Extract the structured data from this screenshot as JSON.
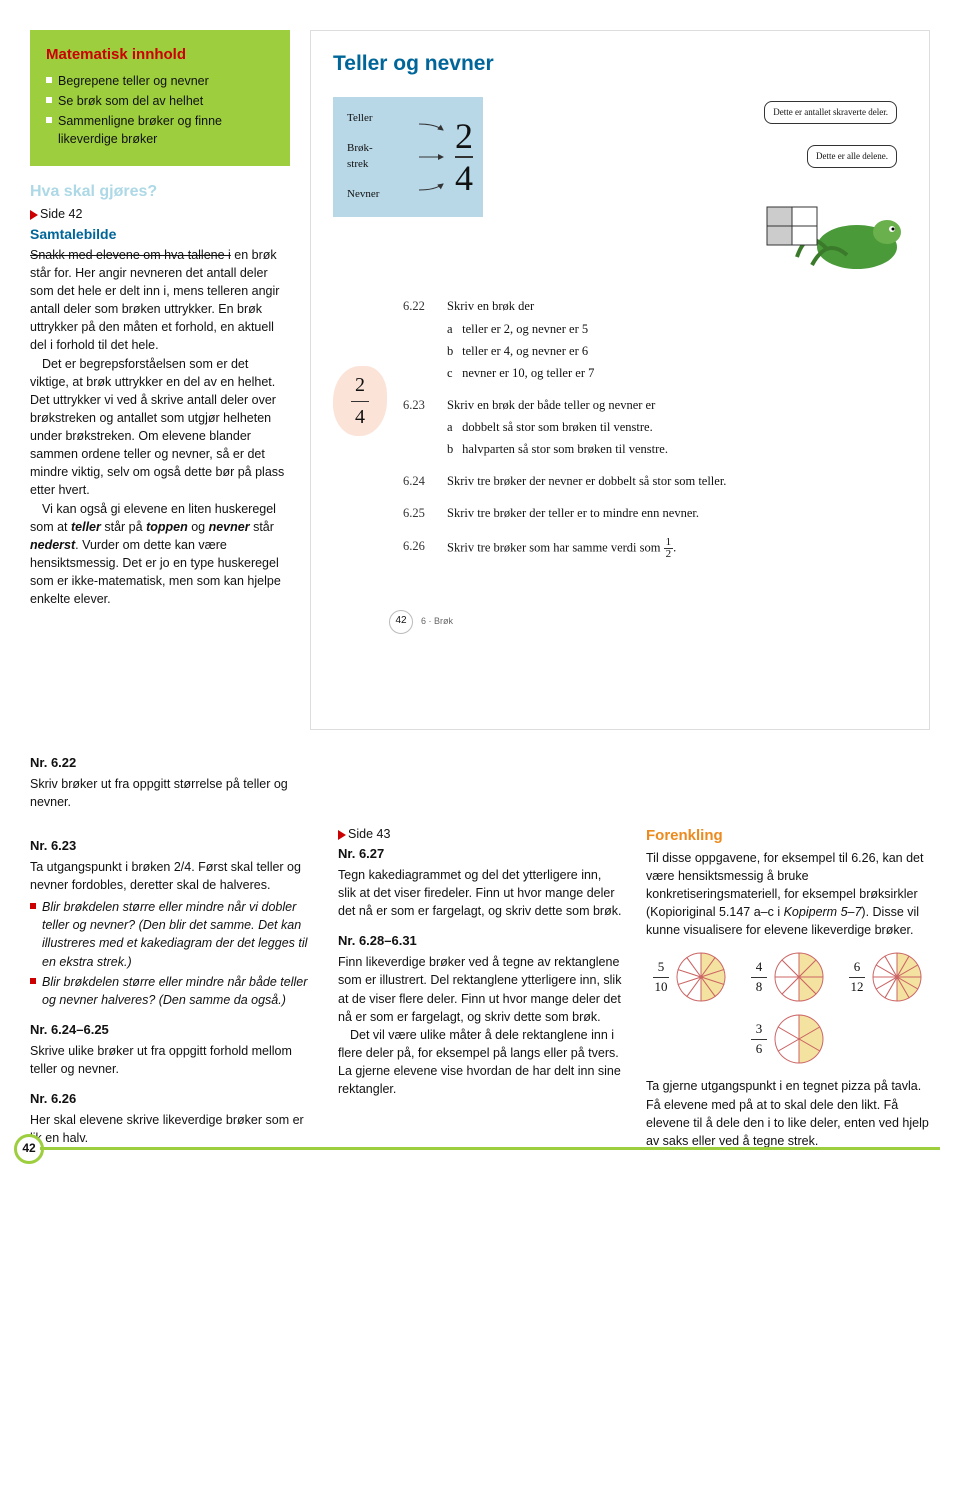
{
  "page_number": "42",
  "left": {
    "box_title": "Matematisk innhold",
    "bullets": [
      "Begrepene teller og nevner",
      "Se brøk som del av helhet",
      "Sammenligne brøker og finne likeverdige brøker"
    ],
    "hva_title": "Hva skal gjøres?",
    "side_ref": "Side 42",
    "sub_title": "Samtalebilde",
    "para1_strike": "Snakk med elevene om hva tallene i",
    "para1_rest": "en brøk står for. Her angir nevneren det antall deler som det hele er delt inn i, mens telleren angir antall deler som brøken uttrykker. En brøk uttrykker på den måten et forhold, en aktuell del i forhold til det hele.",
    "para2": "Det er begrepsforståelsen som er det viktige, at brøk uttrykker en del av en helhet. Det uttrykker vi ved å skrive antall deler over brøkstreken og antallet som utgjør helheten under brøkstreken. Om elevene blander sammen ordene teller og nevner, så er det mindre viktig, selv om også dette bør på plass etter hvert.",
    "para3_pre": "Vi kan også gi elevene en liten huskeregel som at ",
    "para3_b1": "teller",
    "para3_m1": " står på ",
    "para3_b2": "toppen",
    "para3_m2": " og ",
    "para3_b3": "nevner",
    "para3_m3": " står ",
    "para3_b4": "nederst",
    "para3_post": ". Vurder om dette kan være hensiktsmessig. Det er jo en type huskeregel som er ikke-matematisk, men som kan hjelpe enkelte elever."
  },
  "book": {
    "title": "Teller og nevner",
    "teller": "Teller",
    "brokstrek": "Brøk-\nstrek",
    "nevner": "Nevner",
    "frac_top": "2",
    "frac_bot": "4",
    "speech1": "Dette er antallet skraverte deler.",
    "speech2": "Dette er alle delene.",
    "side_frac_top": "2",
    "side_frac_bot": "4",
    "ex": [
      {
        "n": "6.22",
        "q": "Skriv en brøk der",
        "subs": [
          {
            "l": "a",
            "t": "teller er 2, og nevner er 5"
          },
          {
            "l": "b",
            "t": "teller er 4, og nevner er 6"
          },
          {
            "l": "c",
            "t": "nevner er 10, og teller er 7"
          }
        ]
      },
      {
        "n": "6.23",
        "q": "Skriv en brøk der både teller og nevner er",
        "subs": [
          {
            "l": "a",
            "t": "dobbelt så stor som brøken til venstre."
          },
          {
            "l": "b",
            "t": "halvparten så stor som brøken til venstre."
          }
        ]
      },
      {
        "n": "6.24",
        "q": "Skriv tre brøker der nevner er dobbelt så stor som teller."
      },
      {
        "n": "6.25",
        "q": "Skriv tre brøker der teller er to mindre enn nevner."
      },
      {
        "n": "6.26",
        "q": "Skriv tre brøker som har samme verdi som ",
        "frac_t": "1",
        "frac_b": "2",
        "tail": "."
      }
    ],
    "page_num": "42",
    "chapter": "6 · Brøk"
  },
  "mid": {
    "nr622_t": "Nr. 6.22",
    "nr622_p": "Skriv brøker ut fra oppgitt størrelse på teller og nevner.",
    "col1": {
      "nr623_t": "Nr. 6.23",
      "nr623_p": "Ta utgangspunkt i brøken 2/4. Først skal teller og nevner fordobles, deretter skal de halveres.",
      "b1": "Blir brøkdelen større eller mindre når vi dobler teller og nevner? (Den blir det samme. Det kan illustreres med et kakediagram der det legges til en ekstra strek.)",
      "b2": "Blir brøkdelen større eller mindre når både teller og nevner halveres? (Den samme da også.)",
      "nr624_t": "Nr. 6.24–6.25",
      "nr624_p": "Skrive ulike brøker ut fra oppgitt forhold mellom teller og nevner.",
      "nr626_t": "Nr. 6.26",
      "nr626_p": "Her skal elevene skrive likeverdige brøker som er lik en halv."
    },
    "col2": {
      "side43": "Side 43",
      "nr627_t": "Nr. 6.27",
      "nr627_p": "Tegn kakediagrammet og del det ytterligere inn, slik at det viser firedeler. Finn ut hvor mange deler det nå er som er fargelagt, og skriv dette som brøk.",
      "nr628_t": "Nr. 6.28–6.31",
      "nr628_p1": "Finn likeverdige brøker ved å tegne av rektanglene som er illustrert. Del rektanglene ytterligere inn, slik at de viser flere deler. Finn ut hvor mange deler det nå er som er fargelagt, og skriv dette som brøk.",
      "nr628_p2": "Det vil være ulike måter å dele rektanglene inn i flere deler på, for eksempel på langs eller på tvers. La gjerne elevene vise hvordan de har delt inn sine rektangler."
    },
    "col3": {
      "title": "Forenkling",
      "p": "Til disse oppgavene, for eksempel til 6.26, kan det være hensiktsmessig å bruke konkretiseringsmateriell, for eksempel brøksirkler (Kopioriginal 5.147 a–c i Kopiperm 5–7). Disse vil kunne visualisere for elevene likeverdige brøker.",
      "circles": [
        {
          "t": "5",
          "b": "10",
          "slices": 10,
          "filled": 5
        },
        {
          "t": "4",
          "b": "8",
          "slices": 8,
          "filled": 4
        },
        {
          "t": "6",
          "b": "12",
          "slices": 12,
          "filled": 6
        },
        {
          "t": "3",
          "b": "6",
          "slices": 6,
          "filled": 3
        }
      ],
      "p2": "Ta gjerne utgangspunkt i en tegnet pizza på tavla. Få elevene med på at to skal dele den likt. Få elevene til å dele den i to like deler, enten ved hjelp av saks eller ved å tegne strek."
    }
  },
  "colors": {
    "green": "#9cce3e",
    "red": "#cc0000",
    "blue_title": "#006699",
    "orange": "#ec8a1d",
    "pie_fill": "#f4e3a0",
    "pie_line": "#cc6666"
  }
}
